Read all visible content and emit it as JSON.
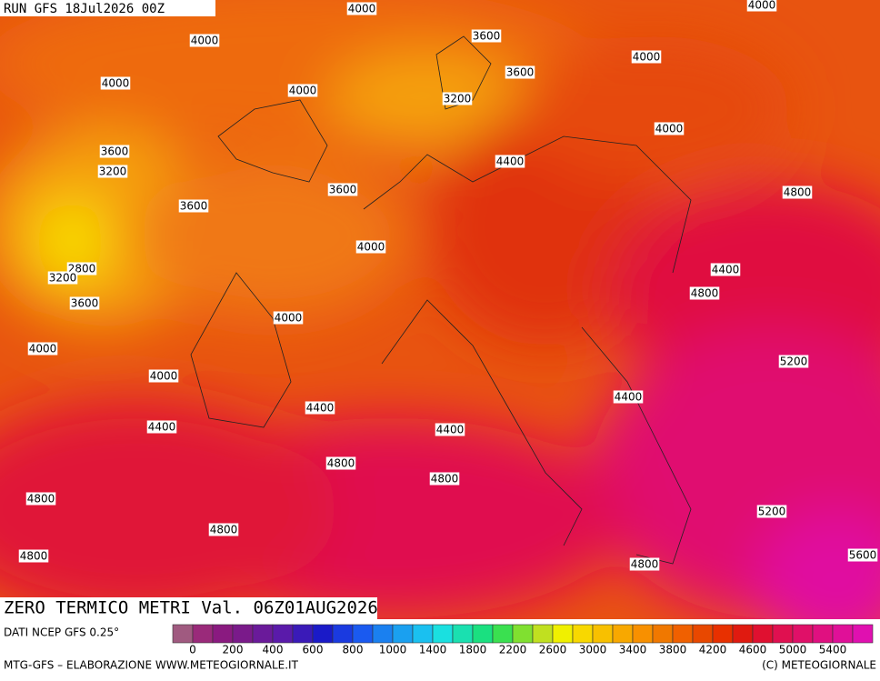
{
  "header": {
    "run": "RUN GFS 18Jul2026 00Z"
  },
  "map": {
    "title": "ZERO TERMICO METRI Val. 06Z01AUG2026",
    "contour_labels": [
      4000,
      4000,
      3600,
      4000,
      4000,
      3600,
      3200,
      4000,
      4000,
      3600,
      3200,
      4400,
      3600,
      3600,
      4800,
      4000,
      2800,
      3200,
      4400,
      4800,
      3600,
      4000,
      4000,
      5200,
      4000,
      4400,
      4400,
      4400,
      4400,
      4800,
      4800,
      4800,
      5200,
      4800,
      4800,
      4800,
      5600,
      4000
    ]
  },
  "legend": {
    "source": "DATI NCEP GFS 0.25°",
    "colors": [
      "#a05a80",
      "#9a2a7a",
      "#8a1a80",
      "#7a1a8a",
      "#6a1a9a",
      "#5a1aaa",
      "#3a1ab8",
      "#1a1ac8",
      "#1a3ae0",
      "#1a5af0",
      "#1a80f0",
      "#1aa0f0",
      "#1ac0f0",
      "#1ae0e0",
      "#1ae0b0",
      "#1ae080",
      "#3ae050",
      "#80e030",
      "#c0e020",
      "#f0f000",
      "#f8d800",
      "#f8c000",
      "#f8a800",
      "#f89000",
      "#f07800",
      "#f06000",
      "#e84800",
      "#e83000",
      "#e01a10",
      "#e01030",
      "#e01050",
      "#e01068",
      "#e01080",
      "#e01098",
      "#e010b0"
    ],
    "ticks": [
      0,
      200,
      400,
      600,
      800,
      1000,
      1400,
      1800,
      2200,
      2600,
      3000,
      3400,
      3800,
      4200,
      4600,
      5000,
      5400
    ]
  },
  "footer": {
    "left": "MTG-GFS – ELABORAZIONE WWW.METEOGIORNALE.IT",
    "right": "(C) METEOGIORNALE"
  }
}
